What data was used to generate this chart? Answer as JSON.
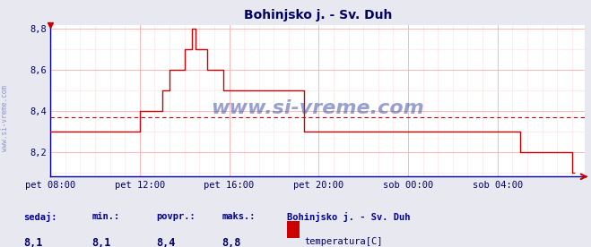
{
  "title": "Bohinjsko j. - Sv. Duh",
  "bg_color": "#e8e8f0",
  "plot_bg_color": "#ffffff",
  "grid_color_major": "#ffaaaa",
  "grid_color_minor": "#ffe0e0",
  "line_color": "#cc0000",
  "avg_line_color": "#cc0000",
  "avg_value": 8.37,
  "xlim_min": 0,
  "xlim_max": 287,
  "ylim_min": 8.08,
  "ylim_max": 8.82,
  "yticks": [
    8.2,
    8.4,
    8.6,
    8.8
  ],
  "xtick_labels": [
    "pet 08:00",
    "pet 12:00",
    "pet 16:00",
    "pet 20:00",
    "sob 00:00",
    "sob 04:00"
  ],
  "xtick_positions": [
    0,
    48,
    96,
    144,
    192,
    240
  ],
  "tick_color": "#000066",
  "title_color": "#000066",
  "spine_color": "#0000aa",
  "watermark": "www.si-vreme.com",
  "sedaj_label": "sedaj:",
  "min_label": "min.:",
  "povpr_label": "povpr.:",
  "maks_label": "maks.:",
  "sedaj_val": "8,1",
  "min_val": "8,1",
  "povpr_val": "8,4",
  "maks_val": "8,8",
  "legend_station": "Bohinjsko j. - Sv. Duh",
  "legend_var": "temperatura[C]",
  "legend_color": "#cc0000",
  "data_y": [
    8.3,
    8.3,
    8.3,
    8.3,
    8.3,
    8.3,
    8.3,
    8.3,
    8.3,
    8.3,
    8.3,
    8.3,
    8.3,
    8.3,
    8.3,
    8.3,
    8.3,
    8.3,
    8.3,
    8.3,
    8.3,
    8.3,
    8.3,
    8.3,
    8.3,
    8.3,
    8.3,
    8.3,
    8.3,
    8.3,
    8.3,
    8.3,
    8.3,
    8.3,
    8.3,
    8.3,
    8.3,
    8.3,
    8.3,
    8.3,
    8.3,
    8.3,
    8.3,
    8.3,
    8.3,
    8.3,
    8.3,
    8.3,
    8.4,
    8.4,
    8.4,
    8.4,
    8.4,
    8.4,
    8.4,
    8.4,
    8.4,
    8.4,
    8.4,
    8.4,
    8.5,
    8.5,
    8.5,
    8.5,
    8.6,
    8.6,
    8.6,
    8.6,
    8.6,
    8.6,
    8.6,
    8.6,
    8.7,
    8.7,
    8.7,
    8.7,
    8.8,
    8.8,
    8.7,
    8.7,
    8.7,
    8.7,
    8.7,
    8.7,
    8.6,
    8.6,
    8.6,
    8.6,
    8.6,
    8.6,
    8.6,
    8.6,
    8.6,
    8.5,
    8.5,
    8.5,
    8.5,
    8.5,
    8.5,
    8.5,
    8.5,
    8.5,
    8.5,
    8.5,
    8.5,
    8.5,
    8.5,
    8.5,
    8.5,
    8.5,
    8.5,
    8.5,
    8.5,
    8.5,
    8.5,
    8.5,
    8.5,
    8.5,
    8.5,
    8.5,
    8.5,
    8.5,
    8.5,
    8.5,
    8.5,
    8.5,
    8.5,
    8.5,
    8.5,
    8.5,
    8.5,
    8.5,
    8.5,
    8.5,
    8.5,
    8.5,
    8.3,
    8.3,
    8.3,
    8.3,
    8.3,
    8.3,
    8.3,
    8.3,
    8.3,
    8.3,
    8.3,
    8.3,
    8.3,
    8.3,
    8.3,
    8.3,
    8.3,
    8.3,
    8.3,
    8.3,
    8.3,
    8.3,
    8.3,
    8.3,
    8.3,
    8.3,
    8.3,
    8.3,
    8.3,
    8.3,
    8.3,
    8.3,
    8.3,
    8.3,
    8.3,
    8.3,
    8.3,
    8.3,
    8.3,
    8.3,
    8.3,
    8.3,
    8.3,
    8.3,
    8.3,
    8.3,
    8.3,
    8.3,
    8.3,
    8.3,
    8.3,
    8.3,
    8.3,
    8.3,
    8.3,
    8.3,
    8.3,
    8.3,
    8.3,
    8.3,
    8.3,
    8.3,
    8.3,
    8.3,
    8.3,
    8.3,
    8.3,
    8.3,
    8.3,
    8.3,
    8.3,
    8.3,
    8.3,
    8.3,
    8.3,
    8.3,
    8.3,
    8.3,
    8.3,
    8.3,
    8.3,
    8.3,
    8.3,
    8.3,
    8.3,
    8.3,
    8.3,
    8.3,
    8.3,
    8.3,
    8.3,
    8.3,
    8.3,
    8.3,
    8.3,
    8.3,
    8.3,
    8.3,
    8.3,
    8.3,
    8.3,
    8.3,
    8.3,
    8.3,
    8.3,
    8.3,
    8.3,
    8.3,
    8.3,
    8.3,
    8.3,
    8.3,
    8.3,
    8.3,
    8.3,
    8.3,
    8.2,
    8.2,
    8.2,
    8.2,
    8.2,
    8.2,
    8.2,
    8.2,
    8.2,
    8.2,
    8.2,
    8.2,
    8.2,
    8.2,
    8.2,
    8.2,
    8.2,
    8.2,
    8.2,
    8.2,
    8.2,
    8.2,
    8.2,
    8.2,
    8.2,
    8.2,
    8.2,
    8.2,
    8.1,
    8.1
  ]
}
